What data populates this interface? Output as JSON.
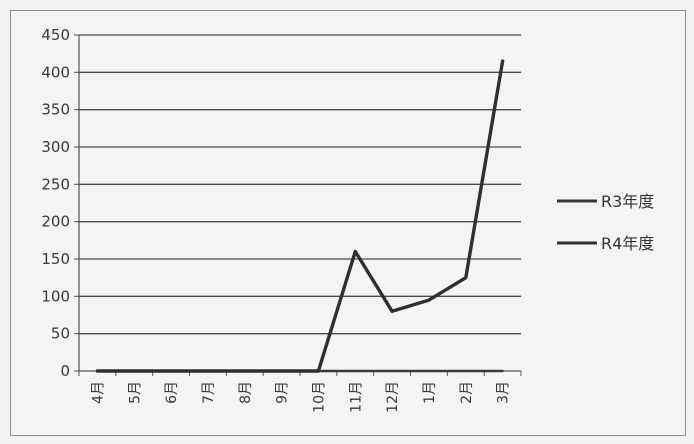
{
  "chart_data": {
    "type": "line",
    "title": "",
    "xlabel": "",
    "ylabel": "",
    "categories": [
      "4月",
      "5月",
      "6月",
      "7月",
      "8月",
      "9月",
      "10月",
      "11月",
      "12月",
      "1月",
      "2月",
      "3月"
    ],
    "ylim": [
      0,
      450
    ],
    "yticks": [
      0,
      50,
      100,
      150,
      200,
      250,
      300,
      350,
      400,
      450
    ],
    "grid": true,
    "legend_position": "right",
    "series": [
      {
        "name": "R3年度",
        "color": "#3a3a3a",
        "values": [
          0,
          0,
          0,
          0,
          0,
          0,
          0,
          0,
          0,
          0,
          0,
          0
        ]
      },
      {
        "name": "R4年度",
        "color": "#2f2f2f",
        "values": [
          0,
          0,
          0,
          0,
          0,
          0,
          0,
          160,
          80,
          95,
          125,
          415
        ]
      }
    ]
  }
}
